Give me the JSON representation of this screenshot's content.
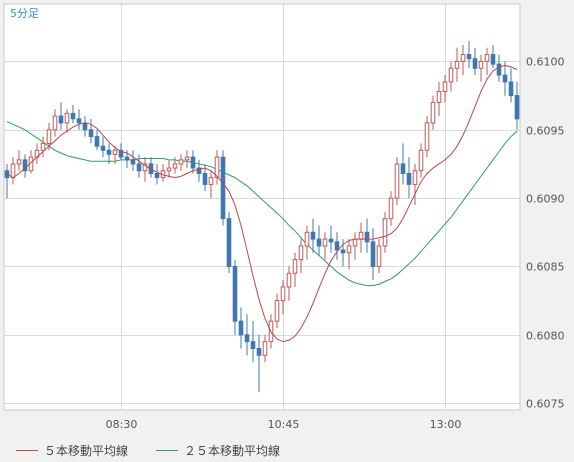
{
  "chart_data": {
    "type": "candlestick",
    "timeframe_label": "5分足",
    "x_tick_labels": [
      "08:30",
      "10:45",
      "13:00"
    ],
    "x_tick_candle_index": [
      19,
      46,
      73
    ],
    "ylim": [
      0.60745,
      0.61042
    ],
    "y_ticks": [
      0.6075,
      0.608,
      0.6085,
      0.609,
      0.6095,
      0.61
    ],
    "y_tick_labels": [
      "0.6075",
      "0.6080",
      "0.6085",
      "0.6090",
      "0.6095",
      "0.6100"
    ],
    "grid": true,
    "legend_position": "bottom-left",
    "colors": {
      "up_body": "#ffffff",
      "up_border": "#c05a5a",
      "down_body": "#3f78b0",
      "ma5": "#c04848",
      "ma25": "#2e9e6e",
      "grid": "#d9d9d9",
      "plot_bg": "#ffffff",
      "label": "#555555",
      "corner_label": "#3d8fd0"
    },
    "series": [
      {
        "name": "５本移動平均線",
        "values": [
          0.60918,
          0.60915,
          0.60918,
          0.60922,
          0.60926,
          0.6093,
          0.60934,
          0.60938,
          0.60942,
          0.60946,
          0.60949,
          0.60952,
          0.60954,
          0.60955,
          0.60954,
          0.60951,
          0.60946,
          0.60941,
          0.60937,
          0.60934,
          0.60933,
          0.6093,
          0.60927,
          0.60924,
          0.60921,
          0.60919,
          0.60917,
          0.60916,
          0.60915,
          0.60916,
          0.60918,
          0.6092,
          0.60921,
          0.60922,
          0.6092,
          0.60916,
          0.60911,
          0.60905,
          0.60895,
          0.6088,
          0.60862,
          0.60843,
          0.60826,
          0.60812,
          0.60802,
          0.60797,
          0.60795,
          0.60796,
          0.60799,
          0.60805,
          0.60813,
          0.60823,
          0.60834,
          0.60845,
          0.60854,
          0.60861,
          0.60866,
          0.60869,
          0.6087,
          0.6087,
          0.6087,
          0.6087,
          0.60871,
          0.60872,
          0.60874,
          0.60878,
          0.60885,
          0.60894,
          0.60903,
          0.60912,
          0.60918,
          0.60922,
          0.60925,
          0.60928,
          0.60932,
          0.60938,
          0.60946,
          0.60956,
          0.60967,
          0.60978,
          0.60987,
          0.60993,
          0.60996,
          0.60997,
          0.60996,
          0.60994
        ]
      },
      {
        "name": "２５本移動平均線",
        "values": [
          0.60956,
          0.60954,
          0.60952,
          0.6095,
          0.60947,
          0.60944,
          0.60941,
          0.60938,
          0.60935,
          0.60933,
          0.60931,
          0.6093,
          0.60929,
          0.60928,
          0.60927,
          0.60927,
          0.60927,
          0.60927,
          0.60927,
          0.60928,
          0.60928,
          0.60928,
          0.60929,
          0.60929,
          0.60929,
          0.60929,
          0.60929,
          0.60928,
          0.60928,
          0.60927,
          0.60927,
          0.60926,
          0.60925,
          0.60924,
          0.60923,
          0.60921,
          0.60919,
          0.60917,
          0.60915,
          0.60912,
          0.60909,
          0.60905,
          0.60901,
          0.60897,
          0.60893,
          0.60889,
          0.60885,
          0.6088,
          0.60876,
          0.60871,
          0.60866,
          0.60862,
          0.60858,
          0.60854,
          0.6085,
          0.60846,
          0.60843,
          0.6084,
          0.60838,
          0.60837,
          0.60836,
          0.60836,
          0.60837,
          0.60839,
          0.60841,
          0.60844,
          0.60848,
          0.60852,
          0.60856,
          0.60861,
          0.60866,
          0.60871,
          0.60876,
          0.60881,
          0.60886,
          0.60892,
          0.60898,
          0.60904,
          0.6091,
          0.60916,
          0.60922,
          0.60928,
          0.60934,
          0.6094,
          0.60945,
          0.60949
        ]
      }
    ],
    "candles": [
      [
        0.6092,
        0.60925,
        0.609,
        0.60915
      ],
      [
        0.60915,
        0.6093,
        0.6091,
        0.60925
      ],
      [
        0.60925,
        0.60935,
        0.6092,
        0.60928
      ],
      [
        0.60928,
        0.60932,
        0.60915,
        0.6092
      ],
      [
        0.6092,
        0.60935,
        0.60918,
        0.6093
      ],
      [
        0.6093,
        0.6094,
        0.60925,
        0.60935
      ],
      [
        0.60935,
        0.60945,
        0.6093,
        0.6094
      ],
      [
        0.6094,
        0.60955,
        0.60935,
        0.6095
      ],
      [
        0.6095,
        0.60965,
        0.60945,
        0.6096
      ],
      [
        0.6096,
        0.6097,
        0.6095,
        0.60955
      ],
      [
        0.60955,
        0.60965,
        0.60948,
        0.60962
      ],
      [
        0.60962,
        0.60968,
        0.60955,
        0.60958
      ],
      [
        0.60958,
        0.60965,
        0.6095,
        0.60955
      ],
      [
        0.60955,
        0.6096,
        0.60945,
        0.6095
      ],
      [
        0.6095,
        0.60958,
        0.6094,
        0.60945
      ],
      [
        0.60945,
        0.6095,
        0.60935,
        0.60938
      ],
      [
        0.60938,
        0.60945,
        0.6093,
        0.60935
      ],
      [
        0.60935,
        0.6094,
        0.60925,
        0.60932
      ],
      [
        0.60932,
        0.60938,
        0.60925,
        0.60935
      ],
      [
        0.60935,
        0.6094,
        0.60928,
        0.6093
      ],
      [
        0.6093,
        0.60935,
        0.60922,
        0.60928
      ],
      [
        0.60928,
        0.60935,
        0.6092,
        0.60925
      ],
      [
        0.60925,
        0.60932,
        0.60915,
        0.6092
      ],
      [
        0.6092,
        0.6093,
        0.60912,
        0.60925
      ],
      [
        0.60925,
        0.6093,
        0.60915,
        0.60918
      ],
      [
        0.60918,
        0.60925,
        0.6091,
        0.60915
      ],
      [
        0.60915,
        0.60925,
        0.60912,
        0.6092
      ],
      [
        0.6092,
        0.60928,
        0.60915,
        0.60922
      ],
      [
        0.60922,
        0.6093,
        0.60918,
        0.60925
      ],
      [
        0.60925,
        0.60932,
        0.6092,
        0.60928
      ],
      [
        0.60928,
        0.60935,
        0.60922,
        0.6093
      ],
      [
        0.6093,
        0.60935,
        0.60918,
        0.60922
      ],
      [
        0.60922,
        0.60928,
        0.60912,
        0.60918
      ],
      [
        0.60918,
        0.60925,
        0.60905,
        0.6091
      ],
      [
        0.6091,
        0.6092,
        0.609,
        0.60915
      ],
      [
        0.60915,
        0.60935,
        0.6091,
        0.6093
      ],
      [
        0.6093,
        0.60935,
        0.6088,
        0.60885
      ],
      [
        0.60885,
        0.6089,
        0.60845,
        0.6085
      ],
      [
        0.6085,
        0.60855,
        0.608,
        0.6081
      ],
      [
        0.6081,
        0.6082,
        0.6079,
        0.608
      ],
      [
        0.608,
        0.60815,
        0.60785,
        0.60795
      ],
      [
        0.60795,
        0.6081,
        0.6078,
        0.6079
      ],
      [
        0.6079,
        0.608,
        0.60758,
        0.60785
      ],
      [
        0.60785,
        0.608,
        0.6078,
        0.60795
      ],
      [
        0.60795,
        0.60815,
        0.6079,
        0.6081
      ],
      [
        0.6081,
        0.6083,
        0.60805,
        0.60825
      ],
      [
        0.60825,
        0.6084,
        0.60815,
        0.60835
      ],
      [
        0.60835,
        0.6085,
        0.60825,
        0.60845
      ],
      [
        0.60845,
        0.6086,
        0.60835,
        0.60855
      ],
      [
        0.60855,
        0.6087,
        0.60845,
        0.60865
      ],
      [
        0.60865,
        0.6088,
        0.60855,
        0.60875
      ],
      [
        0.60875,
        0.60885,
        0.6086,
        0.6087
      ],
      [
        0.6087,
        0.6088,
        0.60858,
        0.60865
      ],
      [
        0.60865,
        0.60875,
        0.60855,
        0.6087
      ],
      [
        0.6087,
        0.6088,
        0.6086,
        0.60868
      ],
      [
        0.60868,
        0.60875,
        0.60855,
        0.60862
      ],
      [
        0.60862,
        0.6087,
        0.6085,
        0.6086
      ],
      [
        0.6086,
        0.6087,
        0.60848,
        0.60865
      ],
      [
        0.60865,
        0.60875,
        0.60855,
        0.6087
      ],
      [
        0.6087,
        0.60882,
        0.6086,
        0.60875
      ],
      [
        0.60875,
        0.60885,
        0.6086,
        0.60868
      ],
      [
        0.60868,
        0.60878,
        0.6084,
        0.6085
      ],
      [
        0.6085,
        0.6087,
        0.60845,
        0.60865
      ],
      [
        0.60865,
        0.6089,
        0.6086,
        0.60885
      ],
      [
        0.60885,
        0.60905,
        0.6088,
        0.609
      ],
      [
        0.609,
        0.6093,
        0.60895,
        0.60925
      ],
      [
        0.60925,
        0.6094,
        0.6091,
        0.60918
      ],
      [
        0.60918,
        0.6093,
        0.609,
        0.6091
      ],
      [
        0.6091,
        0.60925,
        0.60895,
        0.6092
      ],
      [
        0.6092,
        0.6094,
        0.60915,
        0.60935
      ],
      [
        0.60935,
        0.6096,
        0.6093,
        0.60955
      ],
      [
        0.60955,
        0.60975,
        0.6095,
        0.6097
      ],
      [
        0.6097,
        0.60985,
        0.6096,
        0.60978
      ],
      [
        0.60978,
        0.6099,
        0.6097,
        0.60985
      ],
      [
        0.60985,
        0.61,
        0.60978,
        0.60995
      ],
      [
        0.60995,
        0.6101,
        0.60985,
        0.61
      ],
      [
        0.61,
        0.61012,
        0.6099,
        0.61005
      ],
      [
        0.61005,
        0.61015,
        0.60995,
        0.61002
      ],
      [
        0.61002,
        0.6101,
        0.6099,
        0.60995
      ],
      [
        0.60995,
        0.61005,
        0.60985,
        0.61
      ],
      [
        0.61,
        0.6101,
        0.6099,
        0.61005
      ],
      [
        0.61005,
        0.61012,
        0.60995,
        0.60998
      ],
      [
        0.60998,
        0.61005,
        0.60985,
        0.6099
      ],
      [
        0.6099,
        0.61,
        0.60975,
        0.60985
      ],
      [
        0.60985,
        0.60995,
        0.6097,
        0.60975
      ],
      [
        0.60975,
        0.60985,
        0.6095,
        0.60958
      ]
    ]
  }
}
